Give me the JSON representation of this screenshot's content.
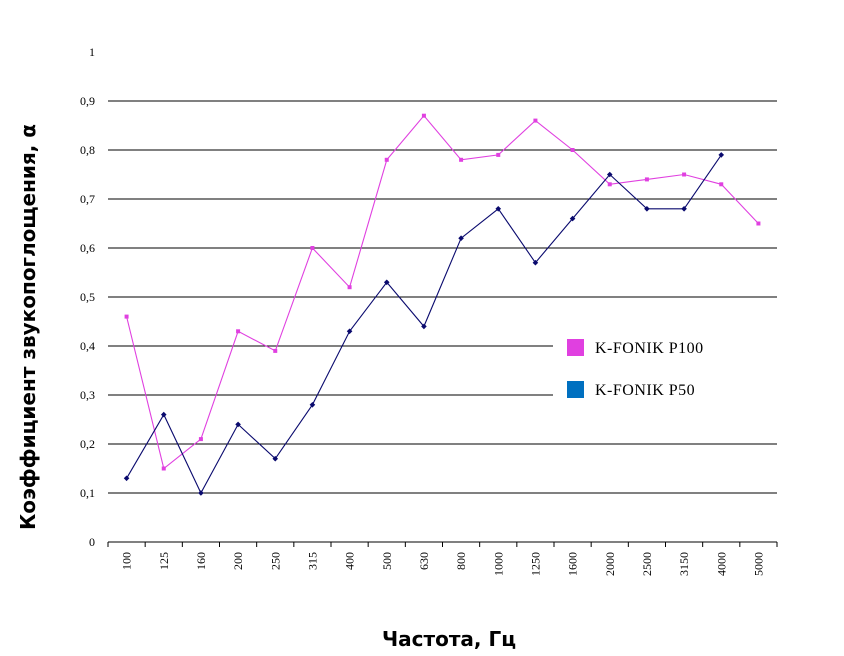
{
  "chart_data": {
    "type": "line",
    "title": "",
    "xlabel": "Частота, Гц",
    "ylabel": "Коэффициент звукопоглощения, α",
    "categories": [
      "100",
      "125",
      "160",
      "200",
      "250",
      "315",
      "400",
      "500",
      "630",
      "800",
      "1000",
      "1250",
      "1600",
      "2000",
      "2500",
      "3150",
      "4000",
      "5000"
    ],
    "y_ticks": [
      "0",
      "0,1",
      "0,2",
      "0,3",
      "0,4",
      "0,5",
      "0,6",
      "0,7",
      "0,8",
      "0,9",
      "1"
    ],
    "ylim": [
      0,
      1
    ],
    "grid": true,
    "legend_position": "right",
    "series": [
      {
        "name": "K-FONIK P100",
        "color": "#e040e0",
        "marker": "square",
        "values": [
          0.46,
          0.15,
          0.21,
          0.43,
          0.39,
          0.6,
          0.52,
          0.78,
          0.87,
          0.78,
          0.79,
          0.86,
          0.8,
          0.73,
          0.74,
          0.75,
          0.73,
          0.65
        ]
      },
      {
        "name": "K-FONIK P50",
        "color": "#0a0a6e",
        "legend_color": "#0070c0",
        "marker": "diamond",
        "values": [
          0.13,
          0.26,
          0.1,
          0.24,
          0.17,
          0.28,
          0.43,
          0.53,
          0.44,
          0.62,
          0.68,
          0.57,
          0.66,
          0.75,
          0.68,
          0.68,
          0.79,
          null
        ]
      }
    ]
  }
}
